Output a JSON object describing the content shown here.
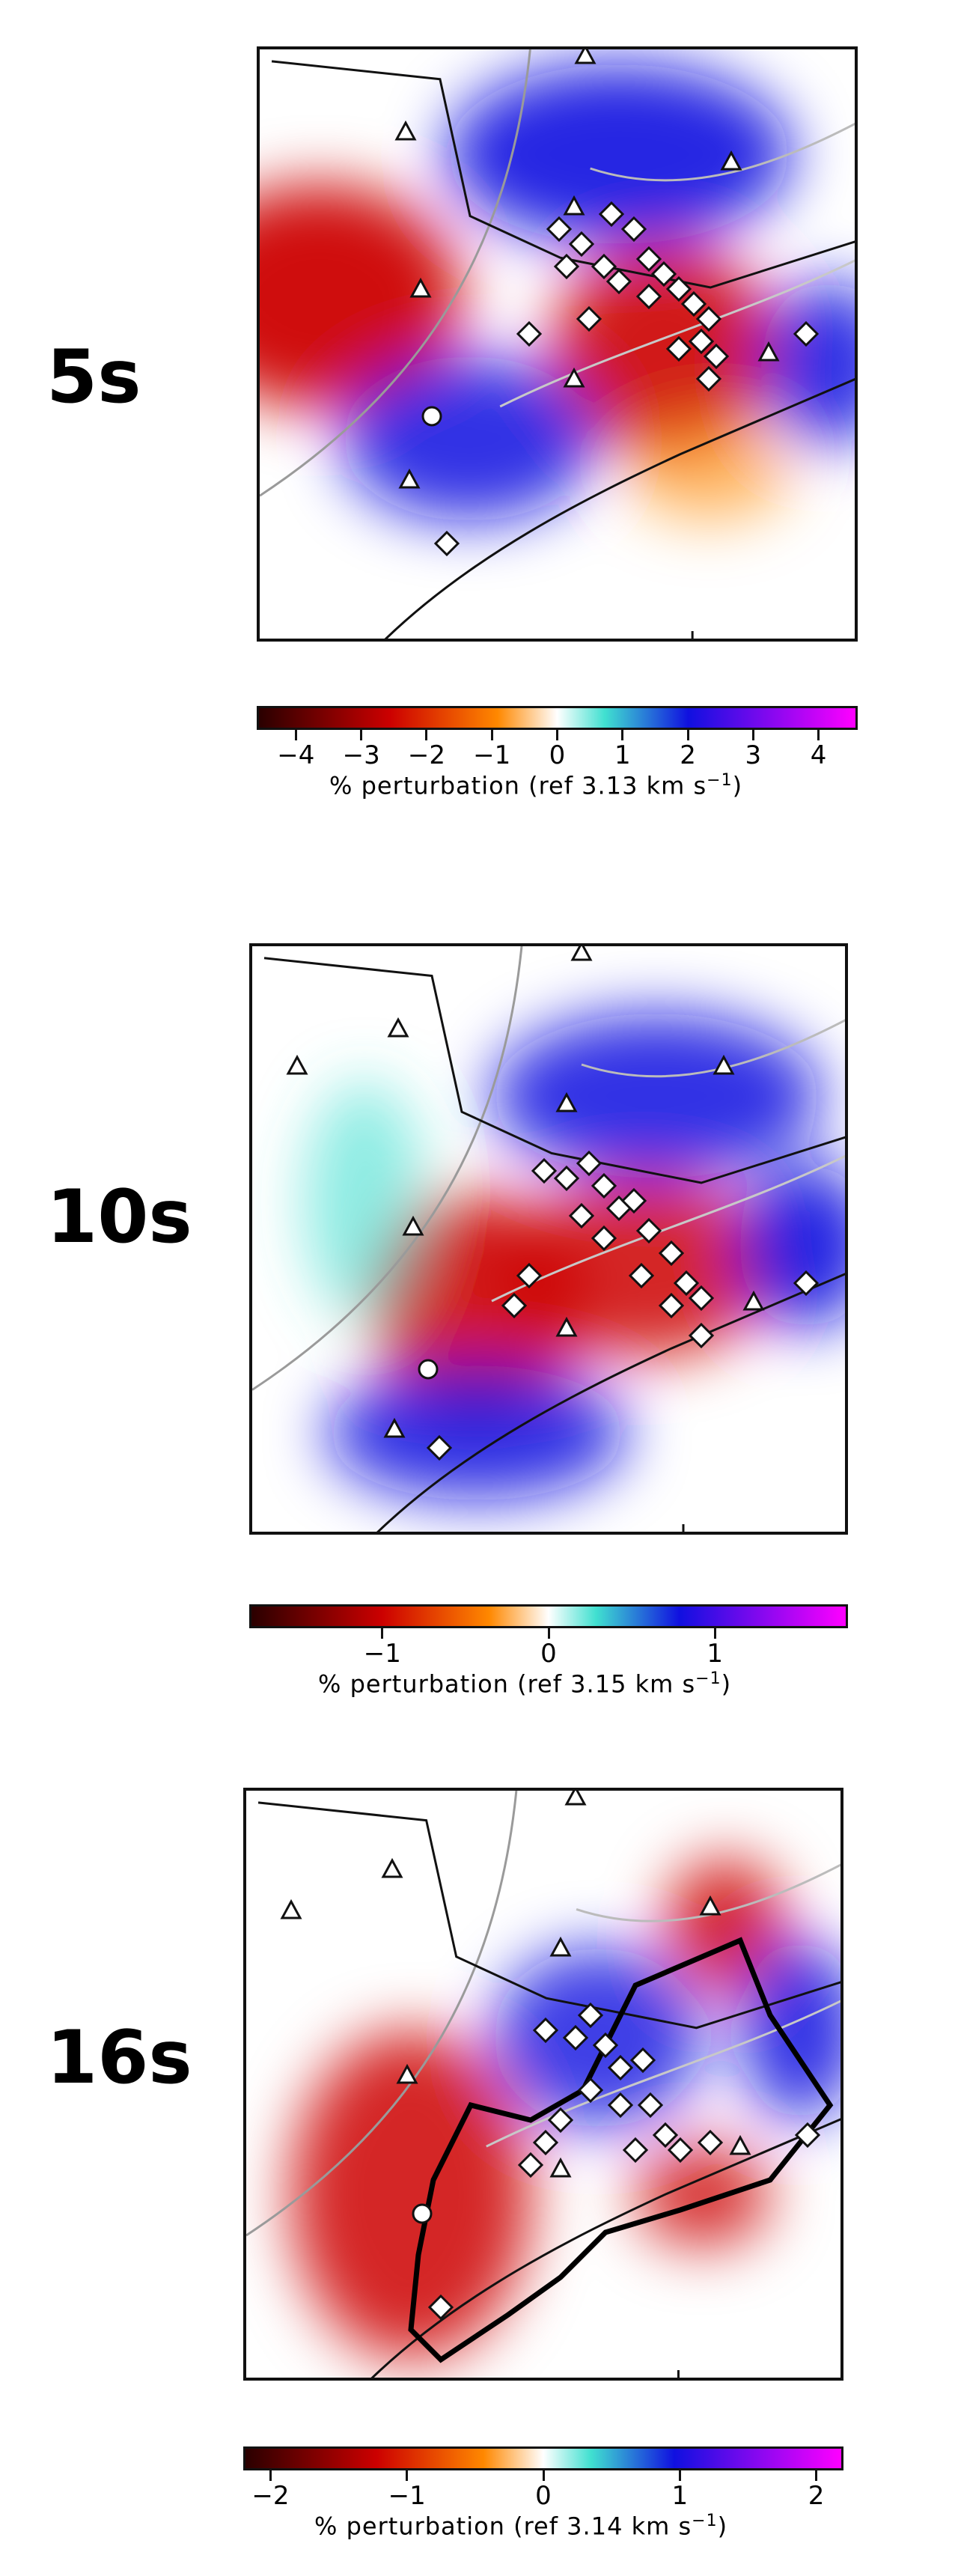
{
  "panels": [
    {
      "label": "5s",
      "colorbar": {
        "ticks": [
          "−4",
          "−3",
          "−2",
          "−1",
          "0",
          "1",
          "2",
          "3",
          "4"
        ],
        "tick_values": [
          -4,
          -3,
          -2,
          -1,
          0,
          1,
          2,
          3,
          4
        ],
        "range": [
          -4.6,
          4.6
        ],
        "label_prefix": "% perturbation (ref 3.13 km s",
        "label_exp": "−1",
        "label_suffix": ")"
      }
    },
    {
      "label": "10s",
      "colorbar": {
        "ticks": [
          "−1",
          "0",
          "1"
        ],
        "tick_values": [
          -1,
          0,
          1
        ],
        "range": [
          -1.8,
          1.8
        ],
        "label_prefix": "% perturbation (ref 3.15 km s",
        "label_exp": "−1",
        "label_suffix": ")"
      }
    },
    {
      "label": "16s",
      "colorbar": {
        "ticks": [
          "−2",
          "−1",
          "0",
          "1",
          "2"
        ],
        "tick_values": [
          -2,
          -1,
          0,
          1,
          2
        ],
        "range": [
          -2.2,
          2.2
        ],
        "label_prefix": "% perturbation (ref 3.14 km s",
        "label_exp": "−1",
        "label_suffix": ")"
      }
    }
  ],
  "colors": {
    "slow_dark": "#2a0000",
    "slow": "#cc0000",
    "slow_light": "#ff8800",
    "neutral": "#ffffff",
    "fast_light": "#40e0d0",
    "fast": "#1010e0",
    "fast_dark": "#ff00ff"
  }
}
